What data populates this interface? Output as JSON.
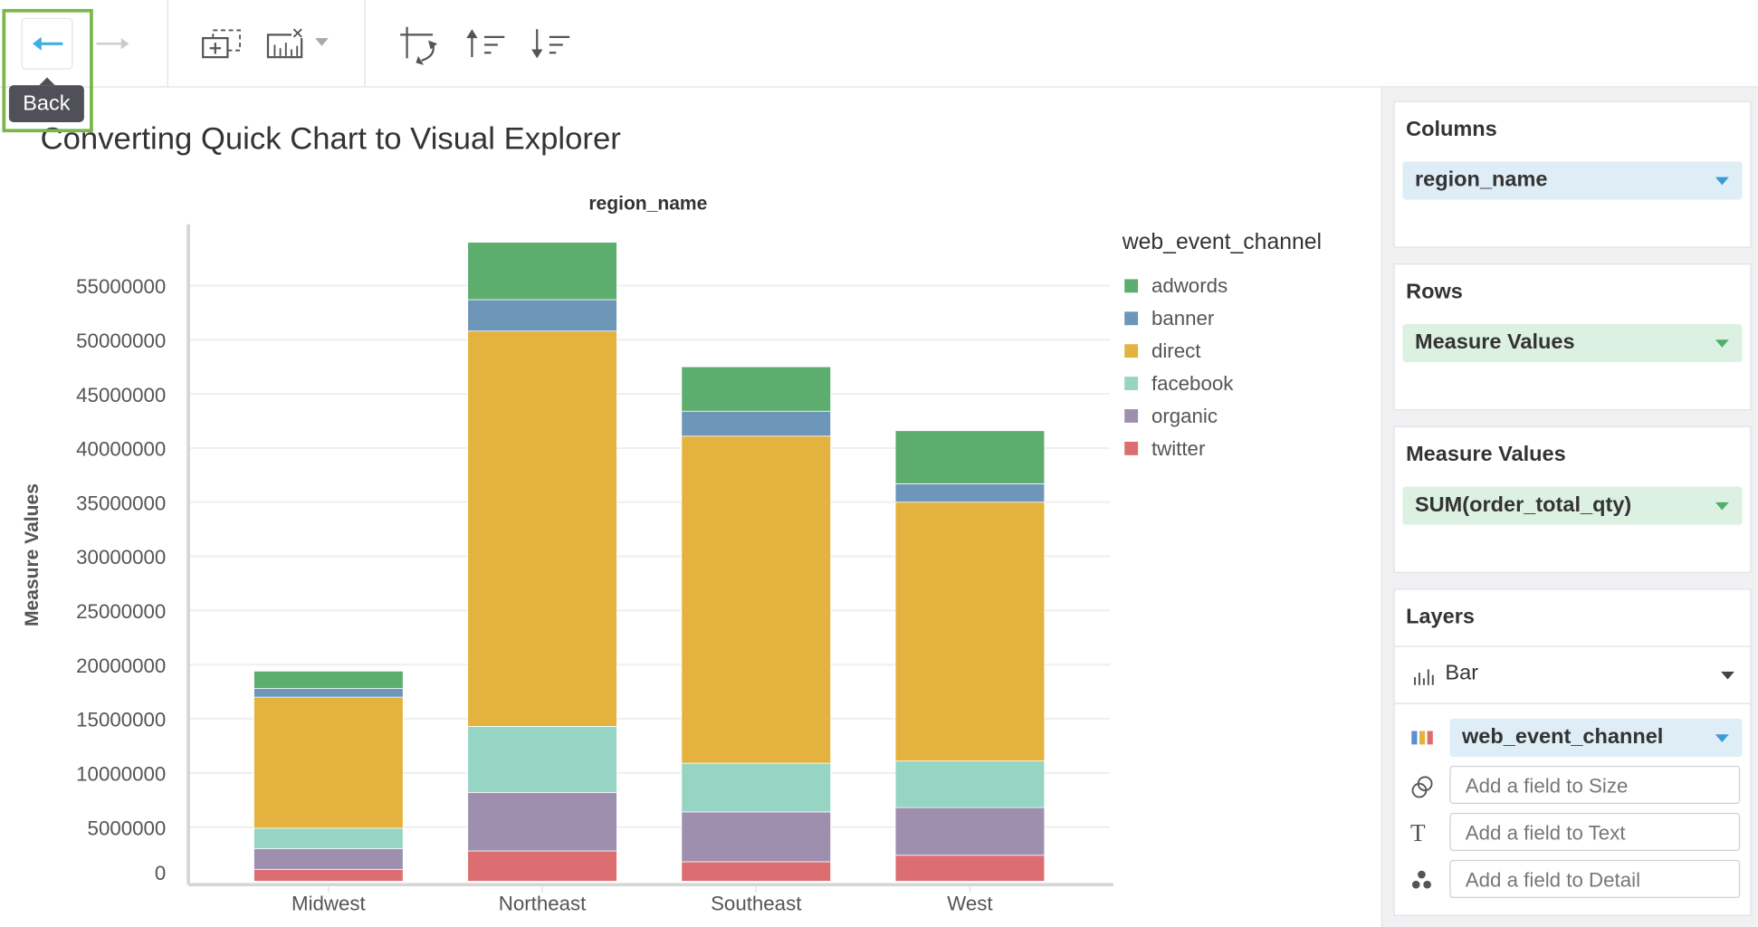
{
  "toolbar": {
    "back_tooltip": "Back",
    "icons": [
      "back-arrow-icon",
      "forward-arrow-icon",
      "add-chart-icon",
      "clear-chart-icon",
      "dropdown-caret-icon",
      "swap-axes-icon",
      "sort-ascending-icon",
      "sort-descending-icon"
    ]
  },
  "page_title": "Converting Quick Chart to Visual Explorer",
  "chart_data": {
    "type": "bar",
    "stacked": true,
    "title": "region_name",
    "xlabel": "",
    "ylabel": "Measure Values",
    "ylim": [
      0,
      60000000
    ],
    "yticks": [
      0,
      5000000,
      10000000,
      15000000,
      20000000,
      25000000,
      30000000,
      35000000,
      40000000,
      45000000,
      50000000,
      55000000
    ],
    "ytick_labels": [
      "0",
      "5000000",
      "10000000",
      "15000000",
      "20000000",
      "25000000",
      "30000000",
      "35000000",
      "40000000",
      "45000000",
      "50000000",
      "55000000"
    ],
    "grid": true,
    "categories": [
      "Midwest",
      "Northeast",
      "Southeast",
      "West"
    ],
    "legend_title": "web_event_channel",
    "legend_position": "right",
    "series": [
      {
        "name": "twitter",
        "color": "#dc6e72",
        "values": [
          1100000,
          2800000,
          1800000,
          2400000
        ]
      },
      {
        "name": "organic",
        "color": "#9e8fae",
        "values": [
          1900000,
          5400000,
          4600000,
          4400000
        ]
      },
      {
        "name": "facebook",
        "color": "#96d5c3",
        "values": [
          1900000,
          6100000,
          4500000,
          4300000
        ]
      },
      {
        "name": "direct",
        "color": "#e4b23f",
        "values": [
          12100000,
          36500000,
          30200000,
          23900000
        ]
      },
      {
        "name": "banner",
        "color": "#6d96b9",
        "values": [
          800000,
          2900000,
          2300000,
          1700000
        ]
      },
      {
        "name": "adwords",
        "color": "#5dae6e",
        "values": [
          1600000,
          5300000,
          4100000,
          4900000
        ]
      }
    ]
  },
  "sidebar": {
    "columns": {
      "title": "Columns",
      "field": "region_name"
    },
    "rows": {
      "title": "Rows",
      "field": "Measure Values"
    },
    "measure_values": {
      "title": "Measure Values",
      "field": "SUM(order_total_qty)"
    },
    "layers": {
      "title": "Layers",
      "mark_type": "Bar",
      "color_field": "web_event_channel",
      "size_placeholder": "Add a field to Size",
      "text_placeholder": "Add a field to Text",
      "detail_placeholder": "Add a field to Detail"
    }
  }
}
